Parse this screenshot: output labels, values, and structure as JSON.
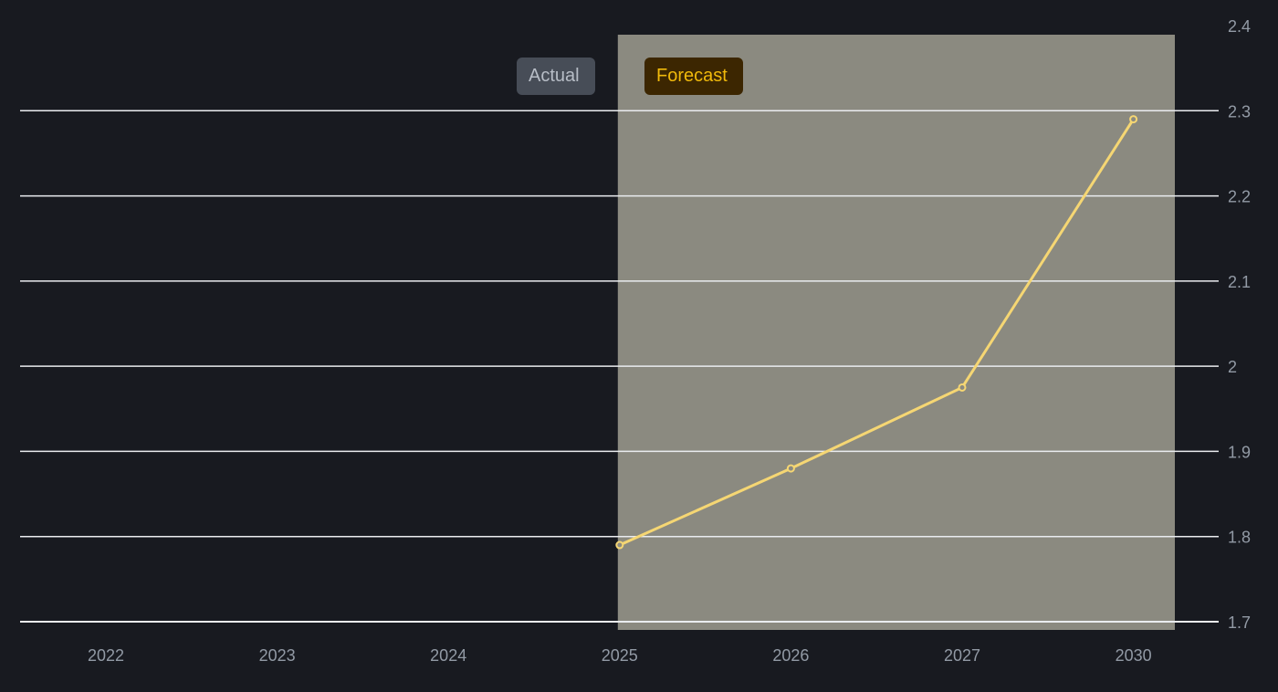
{
  "legend": {
    "actual_label": "Actual",
    "forecast_label": "Forecast"
  },
  "colors": {
    "background": "#181a20",
    "forecast_region": "#8b8a80",
    "gridline": "#eaecef",
    "line": "#f5d673",
    "tick_text": "#929aa5"
  },
  "chart_data": {
    "type": "line",
    "categories": [
      "2022",
      "2023",
      "2024",
      "2025",
      "2026",
      "2027",
      "2030"
    ],
    "series": [
      {
        "name": "Forecast",
        "values": [
          null,
          null,
          null,
          1.79,
          1.88,
          1.975,
          2.29
        ]
      }
    ],
    "forecast_start_category": "2025",
    "y_ticks": [
      "1.7",
      "1.8",
      "1.9",
      "2",
      "2.1",
      "2.2",
      "2.3",
      "2.4"
    ],
    "ylim": [
      1.7,
      2.4
    ],
    "y_axis_position": "right",
    "grid": true,
    "legend_position": "top-center",
    "title": "",
    "xlabel": "",
    "ylabel": ""
  }
}
